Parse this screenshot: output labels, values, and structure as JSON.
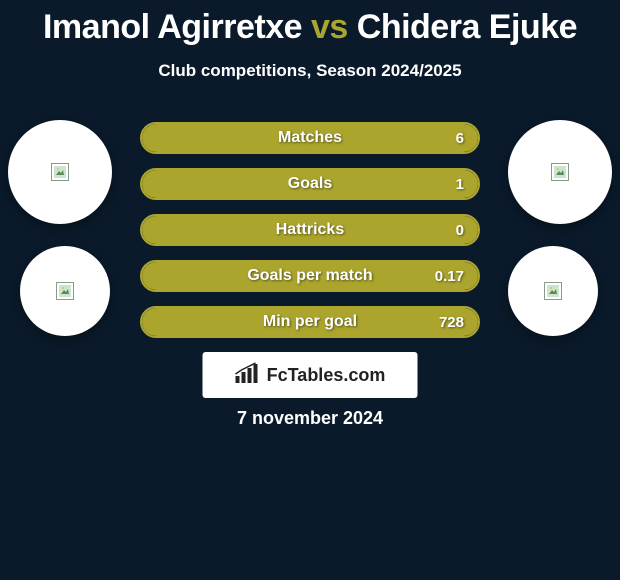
{
  "title": {
    "left_name": "Imanol Agirretxe",
    "vs": "vs",
    "right_name": "Chidera Ejuke"
  },
  "subtitle": "Club competitions, Season 2024/2025",
  "colors": {
    "background": "#0a1a2a",
    "accent": "#a9a52e",
    "bar_fill": "#aba52e",
    "avatar_bg": "#ffffff"
  },
  "stats": [
    {
      "label": "Matches",
      "value_right": "6",
      "fill_pct": 100
    },
    {
      "label": "Goals",
      "value_right": "1",
      "fill_pct": 100
    },
    {
      "label": "Hattricks",
      "value_right": "0",
      "fill_pct": 100
    },
    {
      "label": "Goals per match",
      "value_right": "0.17",
      "fill_pct": 100
    },
    {
      "label": "Min per goal",
      "value_right": "728",
      "fill_pct": 100
    }
  ],
  "logo": {
    "text": "FcTables.com"
  },
  "date": "7 november 2024",
  "avatars": {
    "left": [
      {
        "placeholder": true
      },
      {
        "placeholder": true
      }
    ],
    "right": [
      {
        "placeholder": true
      },
      {
        "placeholder": true
      }
    ]
  }
}
